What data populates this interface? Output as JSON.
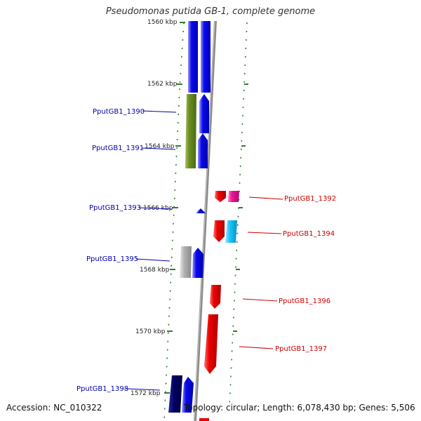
{
  "title": "Pseudomonas putida GB-1, complete genome",
  "footer": {
    "accession": "Accession: NC_010322",
    "stats": "Topology: circular; Length: 6,078,430 bp; Genes: 5,506"
  },
  "colors": {
    "reverse_strand_label": "#0000aa",
    "forward_strand_label": "#cc0000",
    "tick": "#2e7d32",
    "backbone": "#888888",
    "blue_gene": "#0a0aee",
    "dark_blue_gene": "#000066",
    "olive_gene": "#6b8e23",
    "grey_gene": "#b0b0b0",
    "red_gene": "#ee0000",
    "magenta_gene": "#ee1493",
    "cyan_gene": "#1ec8ff"
  },
  "scale": {
    "ticks": [
      {
        "label": "1560 kbp"
      },
      {
        "label": "1562 kbp"
      },
      {
        "label": "1564 kbp"
      },
      {
        "label": "1566 kbp"
      },
      {
        "label": "1568 kbp"
      },
      {
        "label": "1570 kbp"
      },
      {
        "label": "1572 kbp"
      }
    ]
  },
  "gene_labels": {
    "reverse": [
      {
        "name": "PputGB1_1390"
      },
      {
        "name": "PputGB1_1391"
      },
      {
        "name": "PputGB1_1393"
      },
      {
        "name": "PputGB1_1395"
      },
      {
        "name": "PputGB1_1398"
      }
    ],
    "forward": [
      {
        "name": "PputGB1_1392"
      },
      {
        "name": "PputGB1_1394"
      },
      {
        "name": "PputGB1_1396"
      },
      {
        "name": "PputGB1_1397"
      }
    ]
  },
  "features": [
    {
      "name": "blue-gene-upper-left",
      "color_key": "blue_gene"
    },
    {
      "name": "blue-gene-upper-right",
      "color_key": "blue_gene"
    },
    {
      "name": "olive-gene",
      "color_key": "olive_gene"
    },
    {
      "name": "blue-gene-1390",
      "color_key": "blue_gene"
    },
    {
      "name": "blue-gene-1391",
      "color_key": "blue_gene"
    },
    {
      "name": "red-gene-1392",
      "color_key": "red_gene"
    },
    {
      "name": "magenta-gene-1392",
      "color_key": "magenta_gene"
    },
    {
      "name": "blue-gene-1393",
      "color_key": "blue_gene"
    },
    {
      "name": "red-gene-1394",
      "color_key": "red_gene"
    },
    {
      "name": "cyan-gene-1394",
      "color_key": "cyan_gene"
    },
    {
      "name": "grey-gene-1395",
      "color_key": "grey_gene"
    },
    {
      "name": "blue-gene-1395",
      "color_key": "blue_gene"
    },
    {
      "name": "red-gene-1396",
      "color_key": "red_gene"
    },
    {
      "name": "red-gene-1397",
      "color_key": "red_gene"
    },
    {
      "name": "dark-blue-gene-1398",
      "color_key": "dark_blue_gene"
    },
    {
      "name": "blue-gene-1398",
      "color_key": "blue_gene"
    }
  ]
}
